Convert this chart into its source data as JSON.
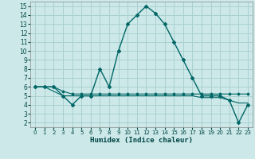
{
  "xlabel": "Humidex (Indice chaleur)",
  "background_color": "#cce8e8",
  "grid_color": "#aad0d0",
  "line_color": "#006666",
  "xlim": [
    -0.5,
    23.5
  ],
  "ylim": [
    1.5,
    15.5
  ],
  "xticks": [
    0,
    1,
    2,
    3,
    4,
    5,
    6,
    7,
    8,
    9,
    10,
    11,
    12,
    13,
    14,
    15,
    16,
    17,
    18,
    19,
    20,
    21,
    22,
    23
  ],
  "yticks": [
    2,
    3,
    4,
    5,
    6,
    7,
    8,
    9,
    10,
    11,
    12,
    13,
    14,
    15
  ],
  "series1": [
    6,
    6,
    6,
    5,
    4,
    5,
    5,
    8,
    6,
    10,
    13,
    14,
    15,
    14.2,
    13,
    11,
    9,
    7,
    5,
    5,
    5,
    4.5,
    2,
    4
  ],
  "series2": [
    6,
    6,
    6,
    5.5,
    5.2,
    5.2,
    5.2,
    5.2,
    5.2,
    5.2,
    5.2,
    5.2,
    5.2,
    5.2,
    5.2,
    5.2,
    5.2,
    5.2,
    5.2,
    5.2,
    5.2,
    5.2,
    5.2,
    5.2
  ],
  "series3": [
    6,
    6,
    5.5,
    5,
    5,
    5,
    5,
    5,
    5,
    5,
    5,
    5,
    5,
    5,
    5,
    5,
    5,
    5,
    4.8,
    4.8,
    4.8,
    4.5,
    4.2,
    4.2
  ]
}
